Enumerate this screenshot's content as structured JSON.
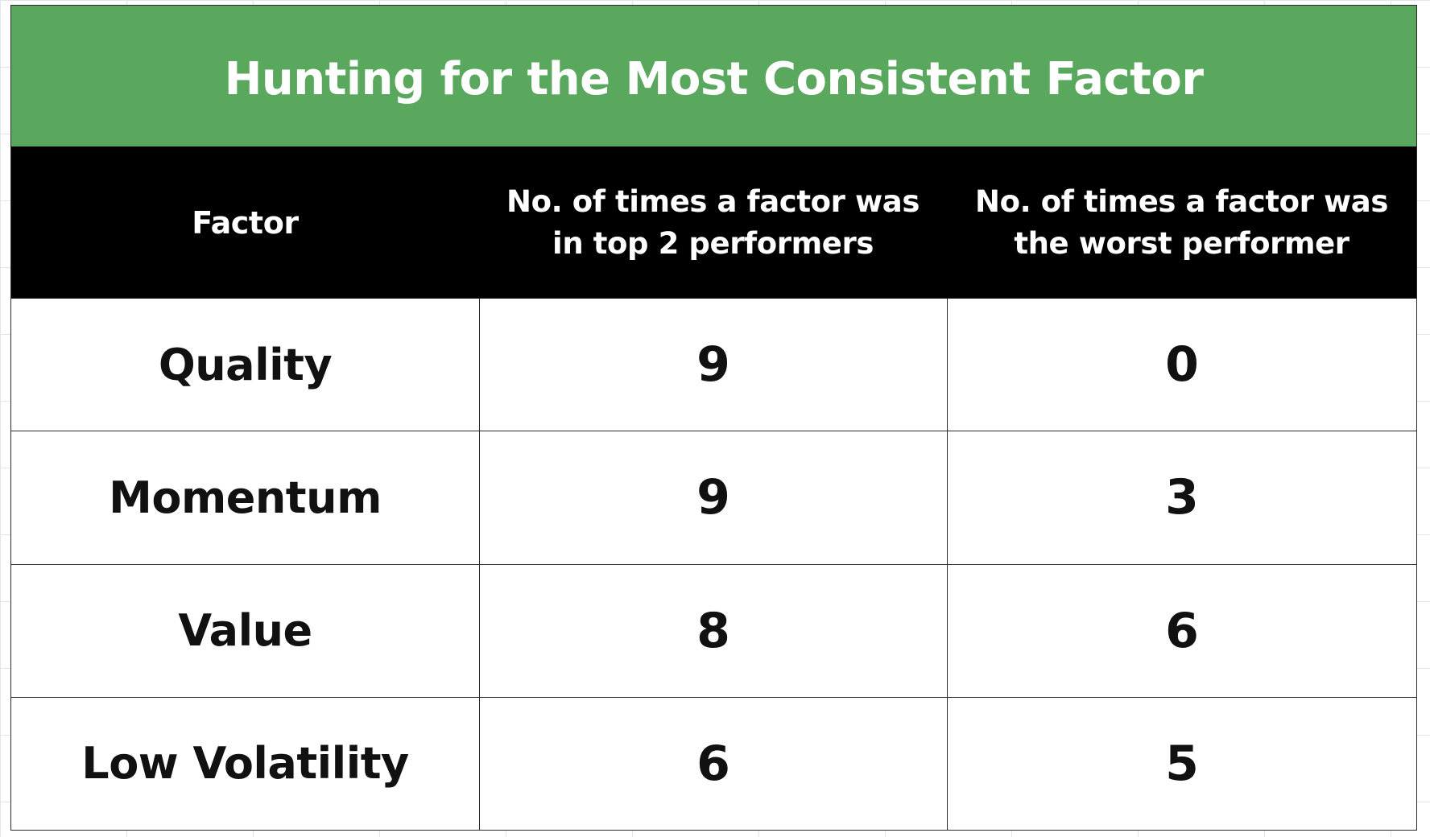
{
  "title": "Hunting for the Most Consistent Factor",
  "colors": {
    "title_background": "#5aa75e",
    "header_background": "#000000",
    "header_text": "#ffffff",
    "cell_text": "#111111"
  },
  "table": {
    "columns": [
      "Factor",
      "No. of times a factor was in top 2 performers",
      "No. of times a factor was the worst performer"
    ],
    "rows": [
      [
        "Quality",
        "9",
        "0"
      ],
      [
        "Momentum",
        "9",
        "3"
      ],
      [
        "Value",
        "8",
        "6"
      ],
      [
        "Low Volatility",
        "6",
        "5"
      ]
    ]
  },
  "chart_data": {
    "type": "table",
    "title": "Hunting for the Most Consistent Factor",
    "columns": [
      "Factor",
      "No. of times a factor was in top 2 performers",
      "No. of times a factor was the worst performer"
    ],
    "categories": [
      "Quality",
      "Momentum",
      "Value",
      "Low Volatility"
    ],
    "series": [
      {
        "name": "No. of times a factor was in top 2 performers",
        "values": [
          9,
          9,
          8,
          6
        ]
      },
      {
        "name": "No. of times a factor was the worst performer",
        "values": [
          0,
          3,
          6,
          5
        ]
      }
    ]
  }
}
